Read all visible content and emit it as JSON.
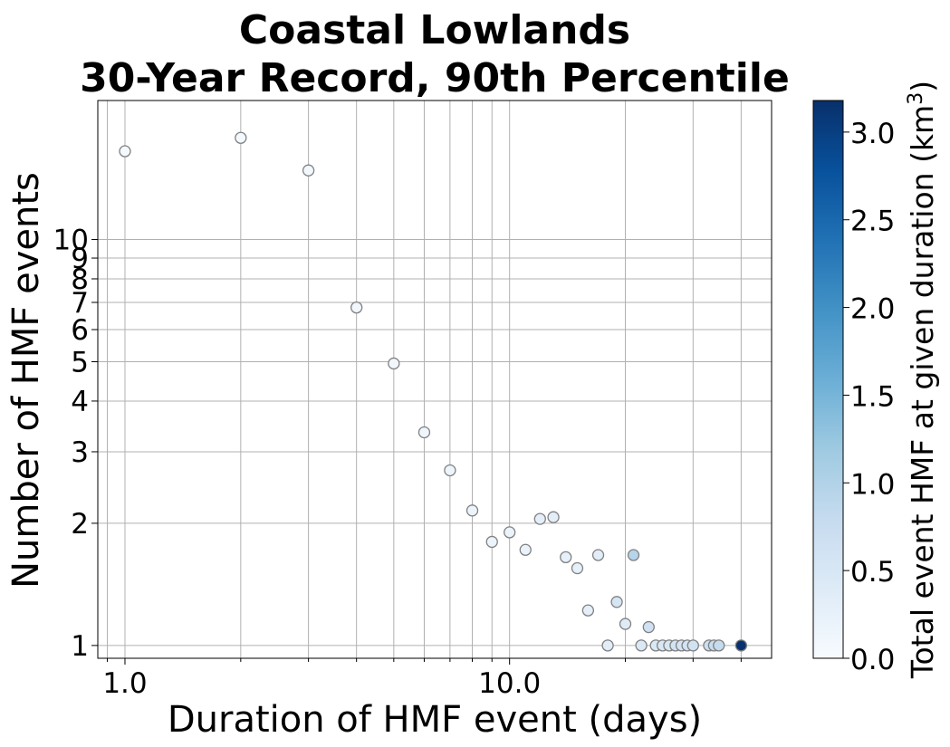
{
  "chart_data": {
    "type": "scatter",
    "title": [
      "Coastal Lowlands",
      "30-Year Record, 90th Percentile"
    ],
    "xlabel": "Duration of HMF event (days)",
    "ylabel": "Number of HMF events",
    "x_scale": "log",
    "y_scale": "log",
    "xlim": [
      0.85,
      48
    ],
    "ylim": [
      0.93,
      22
    ],
    "grid": true,
    "x_major_ticks": [
      {
        "value": 1,
        "label": "1.0"
      },
      {
        "value": 10,
        "label": "10.0"
      }
    ],
    "y_ticks": [
      {
        "value": 1,
        "label": "1"
      },
      {
        "value": 2,
        "label": "2"
      },
      {
        "value": 3,
        "label": "3"
      },
      {
        "value": 4,
        "label": "4"
      },
      {
        "value": 5,
        "label": "5"
      },
      {
        "value": 6,
        "label": "6"
      },
      {
        "value": 7,
        "label": "7"
      },
      {
        "value": 8,
        "label": "8"
      },
      {
        "value": 9,
        "label": "9"
      },
      {
        "value": 10,
        "label": "10"
      }
    ],
    "colorbar": {
      "label_prefix": "Total event HMF at given duration (km",
      "label_sup": "3",
      "label_suffix": ")",
      "range": [
        0,
        3.18
      ],
      "colormap": "Blues",
      "ticks": [
        {
          "value": 0.0,
          "label": "0.0"
        },
        {
          "value": 0.5,
          "label": "0.5"
        },
        {
          "value": 1.0,
          "label": "1.0"
        },
        {
          "value": 1.5,
          "label": "1.5"
        },
        {
          "value": 2.0,
          "label": "2.0"
        },
        {
          "value": 2.5,
          "label": "2.5"
        },
        {
          "value": 3.0,
          "label": "3.0"
        }
      ]
    },
    "points": [
      {
        "x": 1,
        "y": 16.5,
        "c": 0.05
      },
      {
        "x": 2,
        "y": 17.8,
        "c": 0.06
      },
      {
        "x": 3,
        "y": 14.8,
        "c": 0.08
      },
      {
        "x": 4,
        "y": 6.8,
        "c": 0.09
      },
      {
        "x": 5,
        "y": 4.95,
        "c": 0.1
      },
      {
        "x": 6,
        "y": 3.35,
        "c": 0.12
      },
      {
        "x": 7,
        "y": 2.7,
        "c": 0.14
      },
      {
        "x": 8,
        "y": 2.15,
        "c": 0.16
      },
      {
        "x": 9,
        "y": 1.8,
        "c": 0.17
      },
      {
        "x": 10,
        "y": 1.9,
        "c": 0.19
      },
      {
        "x": 11,
        "y": 1.72,
        "c": 0.2
      },
      {
        "x": 12,
        "y": 2.05,
        "c": 0.29
      },
      {
        "x": 13,
        "y": 2.07,
        "c": 0.32
      },
      {
        "x": 14,
        "y": 1.65,
        "c": 0.27
      },
      {
        "x": 15,
        "y": 1.55,
        "c": 0.28
      },
      {
        "x": 16,
        "y": 1.22,
        "c": 0.3
      },
      {
        "x": 17,
        "y": 1.67,
        "c": 0.34
      },
      {
        "x": 18,
        "y": 1.0,
        "c": 0.35
      },
      {
        "x": 19,
        "y": 1.28,
        "c": 0.55
      },
      {
        "x": 20,
        "y": 1.13,
        "c": 0.38
      },
      {
        "x": 21,
        "y": 1.67,
        "c": 0.95
      },
      {
        "x": 22,
        "y": 1.0,
        "c": 0.44
      },
      {
        "x": 23,
        "y": 1.11,
        "c": 0.65
      },
      {
        "x": 24,
        "y": 1.0,
        "c": 0.48
      },
      {
        "x": 25,
        "y": 1.0,
        "c": 0.5
      },
      {
        "x": 26,
        "y": 1.0,
        "c": 0.53
      },
      {
        "x": 27,
        "y": 1.0,
        "c": 0.6
      },
      {
        "x": 28,
        "y": 1.0,
        "c": 0.56
      },
      {
        "x": 29,
        "y": 1.0,
        "c": 0.58
      },
      {
        "x": 30,
        "y": 1.0,
        "c": 0.62
      },
      {
        "x": 33,
        "y": 1.0,
        "c": 0.7
      },
      {
        "x": 34,
        "y": 1.0,
        "c": 0.75
      },
      {
        "x": 35,
        "y": 1.0,
        "c": 0.8
      },
      {
        "x": 40,
        "y": 1.0,
        "c": 3.15
      }
    ]
  }
}
